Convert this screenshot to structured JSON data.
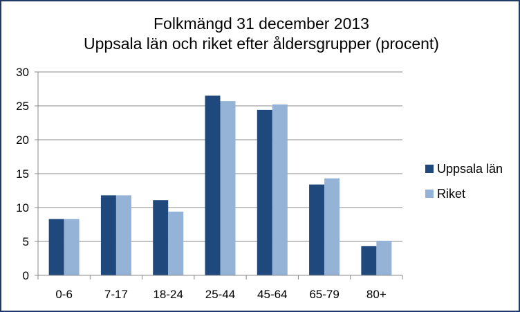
{
  "chart_data": {
    "type": "bar",
    "title": "Folkmängd 31 december 2013",
    "subtitle": "Uppsala län och riket efter åldersgrupper (procent)",
    "categories": [
      "0-6",
      "7-17",
      "18-24",
      "25-44",
      "45-64",
      "65-79",
      "80+"
    ],
    "series": [
      {
        "name": "Uppsala län",
        "color": "#1f497d",
        "values": [
          8.3,
          11.8,
          11.1,
          26.5,
          24.4,
          13.4,
          4.3
        ]
      },
      {
        "name": "Riket",
        "color": "#95b3d7",
        "values": [
          8.3,
          11.8,
          9.4,
          25.7,
          25.2,
          14.3,
          5.1
        ]
      }
    ],
    "ylim": [
      0,
      30
    ],
    "yticks": [
      0,
      5,
      10,
      15,
      20,
      25,
      30
    ],
    "grid": true,
    "legend": "right",
    "xlabel": "",
    "ylabel": ""
  }
}
